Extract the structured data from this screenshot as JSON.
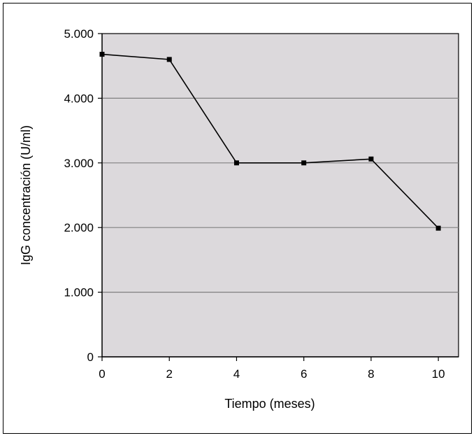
{
  "chart_data": {
    "type": "line",
    "xlabel": "Tiempo (meses)",
    "ylabel": "IgG concentración (U/ml)",
    "x_ticks": [
      "0",
      "2",
      "4",
      "6",
      "8",
      "10"
    ],
    "y_ticks": [
      "0",
      "1.000",
      "2.000",
      "3.000",
      "4.000",
      "5.000"
    ],
    "xlim": [
      0,
      10.6
    ],
    "ylim": [
      0,
      5000
    ],
    "grid": "horizontal",
    "legend": "none",
    "series": [
      {
        "x": [
          0,
          2,
          4,
          6,
          8,
          10
        ],
        "y": [
          4680,
          4600,
          3000,
          3000,
          3060,
          1990
        ]
      }
    ],
    "colors": {
      "plot_background": "#dcd9dc",
      "line": "#000000",
      "grid": "#808080"
    }
  }
}
